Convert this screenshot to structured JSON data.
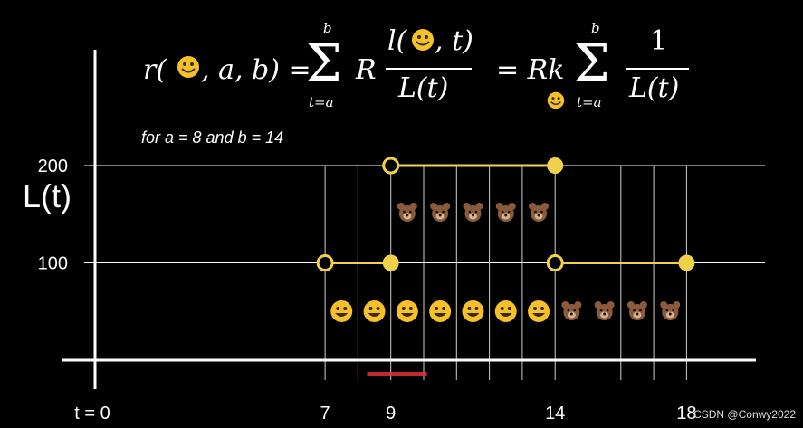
{
  "chart_data": {
    "type": "line",
    "ylabel": "L(t)",
    "note": "for a = 8 and b = 14",
    "formula": {
      "lhs_r": "r(",
      "lhs_rest": ", a, b) =",
      "sum_top": "b",
      "sum_bottom": "t=a",
      "sigma": "Σ",
      "coef_R": "R",
      "num_l": "l(",
      "num_t": ", t)",
      "den": "L(t)",
      "equals2": "= Rk",
      "one": "1"
    },
    "x_ticks": [
      {
        "value": 0,
        "label": "t = 0"
      },
      {
        "value": 7,
        "label": "7"
      },
      {
        "value": 9,
        "label": "9"
      },
      {
        "value": 14,
        "label": "14"
      },
      {
        "value": 18,
        "label": "18"
      }
    ],
    "y_ticks": [
      {
        "value": 100,
        "label": "100"
      },
      {
        "value": 200,
        "label": "200"
      }
    ],
    "ylim": [
      0,
      200
    ],
    "xlim": [
      0,
      20
    ],
    "segments": [
      {
        "x0": 7,
        "x1": 9,
        "y": 100,
        "start": "open",
        "end": "closed"
      },
      {
        "x0": 9,
        "x1": 14,
        "y": 200,
        "start": "open",
        "end": "closed"
      },
      {
        "x0": 14,
        "x1": 18,
        "y": 100,
        "start": "open",
        "end": "closed"
      }
    ],
    "time_steps": [
      7,
      8,
      9,
      10,
      11,
      12,
      13,
      14,
      15,
      16,
      17,
      18
    ],
    "bears_upper": [
      9,
      10,
      11,
      12,
      13
    ],
    "smiles_lower": [
      7,
      8,
      9,
      10,
      11,
      12,
      13
    ],
    "bears_lower": [
      14,
      15,
      16,
      17
    ],
    "highlight_range": [
      8,
      10.1
    ],
    "colors": {
      "step": "#f2d14a",
      "grid": "#ffffff",
      "highlight": "#e0303a",
      "smile": "#f5c02a",
      "bear": "#8a5a3a"
    }
  },
  "credit": "CSDN @Conwy2022"
}
